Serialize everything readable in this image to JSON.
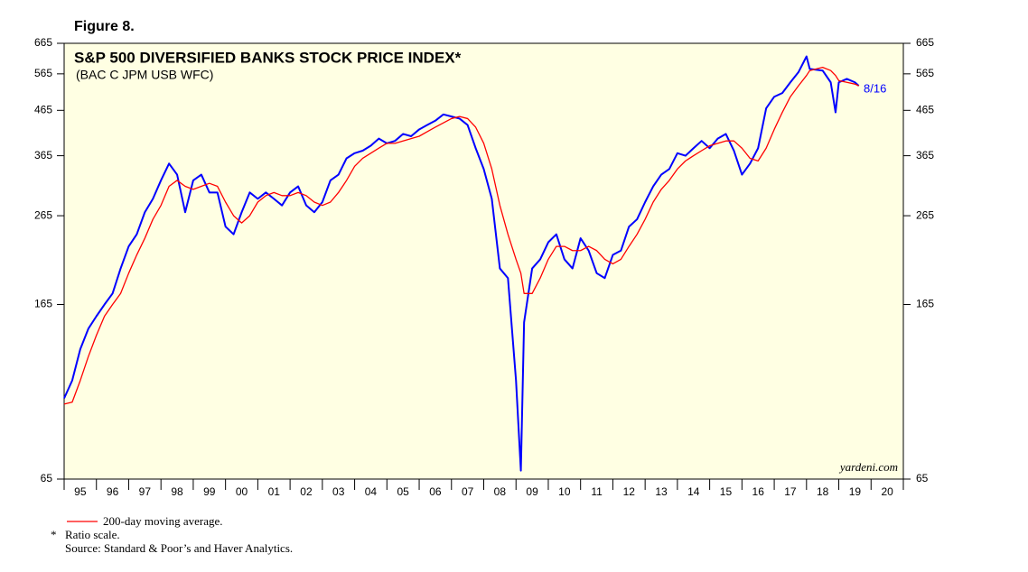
{
  "chart_data": {
    "type": "line",
    "figure_label": "Figure 8.",
    "title": "S&P 500 DIVERSIFIED BANKS STOCK PRICE INDEX*",
    "subtitle": "(BAC C JPM USB WFC)",
    "annotation": "8/16",
    "credit": "yardeni.com",
    "notes": [
      {
        "marker": "*",
        "text": "Ratio scale."
      }
    ],
    "source": "Source: Standard & Poor’s and Haver Analytics.",
    "log_scale": true,
    "grid": false,
    "x": [
      1995,
      1995.25,
      1995.5,
      1995.75,
      1996,
      1996.25,
      1996.5,
      1996.75,
      1997,
      1997.25,
      1997.5,
      1997.75,
      1998,
      1998.25,
      1998.5,
      1998.75,
      1999,
      1999.25,
      1999.5,
      1999.75,
      2000,
      2000.25,
      2000.5,
      2000.75,
      2001,
      2001.25,
      2001.5,
      2001.75,
      2002,
      2002.25,
      2002.5,
      2002.75,
      2003,
      2003.25,
      2003.5,
      2003.75,
      2004,
      2004.25,
      2004.5,
      2004.75,
      2005,
      2005.25,
      2005.5,
      2005.75,
      2006,
      2006.25,
      2006.5,
      2006.75,
      2007,
      2007.25,
      2007.5,
      2007.75,
      2008,
      2008.25,
      2008.5,
      2008.75,
      2009,
      2009.15,
      2009.25,
      2009.5,
      2009.75,
      2010,
      2010.25,
      2010.5,
      2010.75,
      2011,
      2011.25,
      2011.5,
      2011.75,
      2012,
      2012.25,
      2012.5,
      2012.75,
      2013,
      2013.25,
      2013.5,
      2013.75,
      2014,
      2014.25,
      2014.5,
      2014.75,
      2015,
      2015.25,
      2015.5,
      2015.75,
      2016,
      2016.25,
      2016.5,
      2016.75,
      2017,
      2017.25,
      2017.5,
      2017.75,
      2018,
      2018.1,
      2018.5,
      2018.75,
      2018.9,
      2019,
      2019.25,
      2019.5,
      2019.62
    ],
    "series": [
      {
        "color": "#0000ff",
        "values": [
          100,
          110,
          130,
          145,
          155,
          165,
          175,
          200,
          225,
          240,
          270,
          290,
          320,
          350,
          330,
          270,
          320,
          330,
          300,
          300,
          250,
          240,
          270,
          300,
          290,
          300,
          290,
          280,
          300,
          310,
          280,
          270,
          285,
          320,
          330,
          360,
          370,
          375,
          385,
          400,
          390,
          395,
          410,
          405,
          420,
          430,
          440,
          455,
          450,
          445,
          430,
          380,
          340,
          290,
          200,
          190,
          110,
          68,
          150,
          200,
          210,
          230,
          240,
          210,
          200,
          235,
          220,
          195,
          190,
          215,
          220,
          250,
          260,
          285,
          310,
          330,
          340,
          370,
          365,
          380,
          395,
          380,
          400,
          410,
          375,
          330,
          350,
          380,
          470,
          500,
          510,
          540,
          570,
          620,
          580,
          575,
          540,
          460,
          540,
          550,
          540,
          530
        ]
      },
      {
        "name": "200-day moving average.",
        "color": "#ff0000",
        "values": [
          97,
          98,
          110,
          125,
          140,
          155,
          165,
          175,
          195,
          215,
          235,
          260,
          280,
          310,
          320,
          310,
          305,
          310,
          315,
          310,
          285,
          265,
          255,
          265,
          285,
          295,
          300,
          295,
          295,
          300,
          295,
          285,
          280,
          285,
          300,
          320,
          345,
          360,
          370,
          380,
          390,
          390,
          395,
          400,
          405,
          415,
          425,
          435,
          445,
          450,
          445,
          425,
          390,
          340,
          280,
          240,
          210,
          195,
          175,
          175,
          190,
          210,
          225,
          225,
          220,
          220,
          225,
          220,
          210,
          205,
          210,
          225,
          240,
          260,
          285,
          305,
          320,
          340,
          355,
          365,
          375,
          385,
          390,
          395,
          395,
          380,
          360,
          355,
          380,
          420,
          460,
          500,
          530,
          560,
          575,
          585,
          575,
          560,
          545,
          540,
          535,
          530
        ]
      }
    ],
    "xlim": [
      1995,
      2021
    ],
    "xticks": [
      {
        "value": 1995.5,
        "label": "95"
      },
      {
        "value": 1996.5,
        "label": "96"
      },
      {
        "value": 1997.5,
        "label": "97"
      },
      {
        "value": 1998.5,
        "label": "98"
      },
      {
        "value": 1999.5,
        "label": "99"
      },
      {
        "value": 2000.5,
        "label": "00"
      },
      {
        "value": 2001.5,
        "label": "01"
      },
      {
        "value": 2002.5,
        "label": "02"
      },
      {
        "value": 2003.5,
        "label": "03"
      },
      {
        "value": 2004.5,
        "label": "04"
      },
      {
        "value": 2005.5,
        "label": "05"
      },
      {
        "value": 2006.5,
        "label": "06"
      },
      {
        "value": 2007.5,
        "label": "07"
      },
      {
        "value": 2008.5,
        "label": "08"
      },
      {
        "value": 2009.5,
        "label": "09"
      },
      {
        "value": 2010.5,
        "label": "10"
      },
      {
        "value": 2011.5,
        "label": "11"
      },
      {
        "value": 2012.5,
        "label": "12"
      },
      {
        "value": 2013.5,
        "label": "13"
      },
      {
        "value": 2014.5,
        "label": "14"
      },
      {
        "value": 2015.5,
        "label": "15"
      },
      {
        "value": 2016.5,
        "label": "16"
      },
      {
        "value": 2017.5,
        "label": "17"
      },
      {
        "value": 2018.5,
        "label": "18"
      },
      {
        "value": 2019.5,
        "label": "19"
      },
      {
        "value": 2020.5,
        "label": "20"
      }
    ],
    "ylim": [
      65,
      665
    ],
    "yticks": [
      65,
      165,
      265,
      365,
      465,
      565,
      665
    ]
  }
}
